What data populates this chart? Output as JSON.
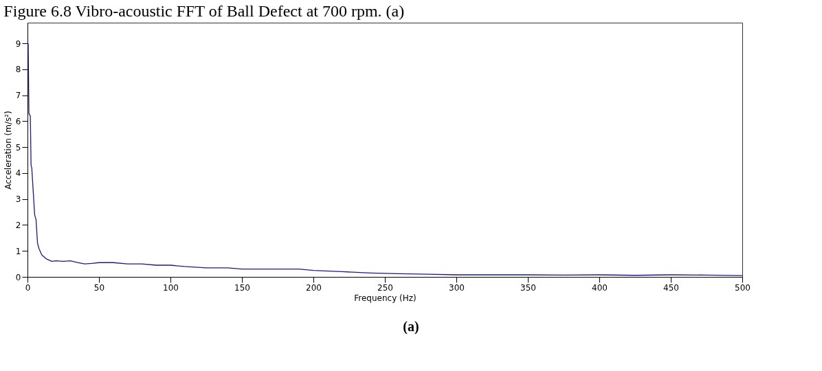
{
  "chart_data": {
    "type": "line",
    "title": "Figure 6.8 Vibro-acoustic FFT of Ball Defect at 700 rpm. (a)",
    "xlabel": "Frequency (Hz)",
    "ylabel": "Acceleration (m/s²)",
    "annotations": [
      "(a)"
    ],
    "x": [
      0.5,
      1,
      2,
      2.5,
      3,
      4,
      5,
      6,
      7,
      8,
      10,
      13,
      17,
      20,
      25,
      30,
      35,
      40,
      45,
      50,
      60,
      70,
      80,
      90,
      100,
      110,
      125,
      140,
      150,
      170,
      190,
      200,
      220,
      240,
      260,
      280,
      300,
      320,
      350,
      375,
      400,
      425,
      450,
      475,
      500
    ],
    "series": [
      {
        "color": "#1a1a8c",
        "values": [
          9,
          6.3,
          6.2,
          4.3,
          4.2,
          3.3,
          2.4,
          2.2,
          1.3,
          1.1,
          0.85,
          0.7,
          0.6,
          0.62,
          0.6,
          0.62,
          0.55,
          0.5,
          0.52,
          0.55,
          0.55,
          0.5,
          0.5,
          0.45,
          0.45,
          0.4,
          0.35,
          0.35,
          0.3,
          0.3,
          0.3,
          0.25,
          0.2,
          0.15,
          0.12,
          0.1,
          0.08,
          0.08,
          0.08,
          0.07,
          0.08,
          0.06,
          0.08,
          0.07,
          0.05
        ]
      }
    ],
    "xlim": [
      0,
      500
    ],
    "xticks": [
      0,
      50,
      100,
      150,
      200,
      250,
      300,
      350,
      400,
      450,
      500
    ],
    "ylim": [
      0,
      9.8
    ],
    "yticks": [
      0,
      1,
      2,
      3,
      4,
      5,
      6,
      7,
      8,
      9
    ],
    "grid": false,
    "marker": "none",
    "line_style": "solid"
  }
}
